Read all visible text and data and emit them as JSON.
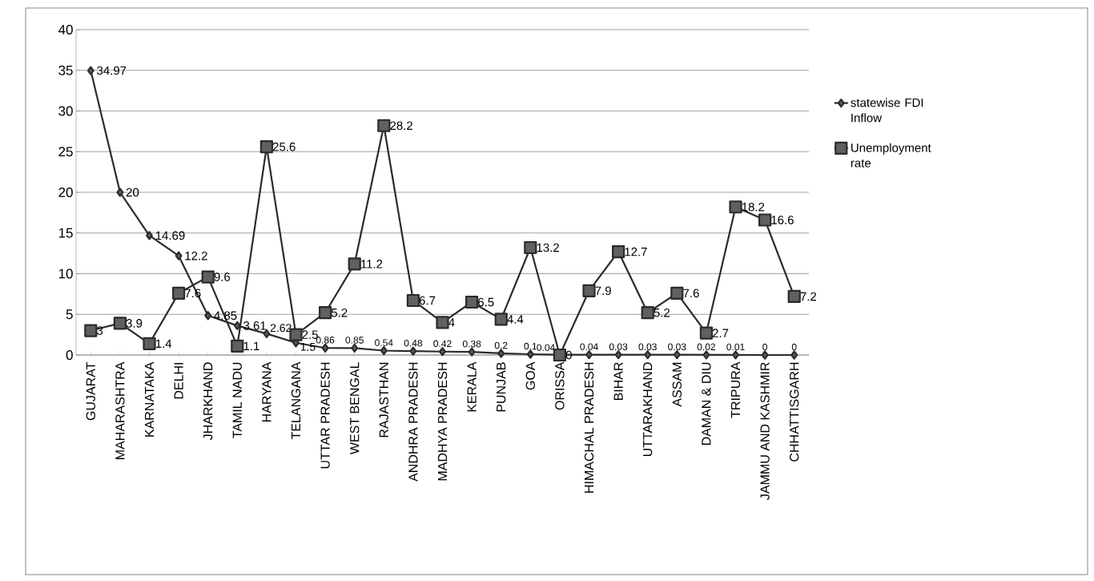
{
  "chart_data": {
    "type": "line",
    "categories": [
      "GUJARAT",
      "MAHARASHTRA",
      "KARNATAKA",
      "DELHI",
      "JHARKHAND",
      "TAMIL NADU",
      "HARYANA",
      "TELANGANA",
      "UTTAR PRADESH",
      "WEST BENGAL",
      "RAJASTHAN",
      "ANDHRA PRADESH",
      "MADHYA PRADESH",
      "KERALA",
      "PUNJAB",
      "GOA",
      "ORISSA",
      "HIMACHAL PRADESH",
      "BIHAR",
      "UTTARAKHAND",
      "ASSAM",
      "DAMAN & DIU",
      "TRIPURA",
      "JAMMU AND KASHMIR",
      "CHHATTISGARH"
    ],
    "series": [
      {
        "name": "statewise FDI Inflow",
        "color": "#2b2b2b",
        "marker": "diamond",
        "values": [
          34.97,
          20,
          14.69,
          12.2,
          4.85,
          3.61,
          2.62,
          1.5,
          0.86,
          0.85,
          0.54,
          0.48,
          0.42,
          0.38,
          0.2,
          0.1,
          0.04,
          0.04,
          0.03,
          0.03,
          0.03,
          0.02,
          0.01,
          0,
          0
        ]
      },
      {
        "name": "Unemployment rate",
        "color": "#2b2b2b",
        "marker": "square",
        "values": [
          3,
          3.9,
          1.4,
          7.6,
          9.6,
          1.1,
          25.6,
          2.5,
          5.2,
          11.2,
          28.2,
          6.7,
          4,
          6.5,
          4.4,
          13.2,
          0,
          7.9,
          12.7,
          5.2,
          7.6,
          2.7,
          18.2,
          16.6,
          7.2
        ]
      }
    ],
    "ylim": [
      0,
      40
    ],
    "yticks": [
      0,
      5,
      10,
      15,
      20,
      25,
      30,
      35,
      40
    ],
    "grid": "y",
    "legend": "right",
    "data_labels": true,
    "line_style": "solid"
  }
}
